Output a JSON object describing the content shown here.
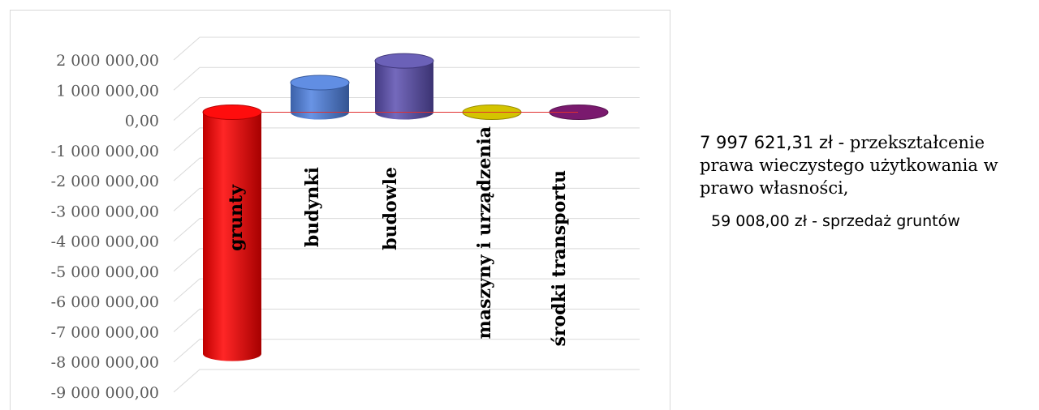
{
  "chart_data": {
    "type": "bar",
    "style": "3d-cylinder",
    "categories": [
      "grunty",
      "budynki",
      "budowle",
      "maszyny i urządzenia",
      "środki transportu"
    ],
    "values": [
      -7997621.31,
      980000,
      1700000,
      59008,
      15000
    ],
    "ylim": [
      -9000000,
      2000000
    ],
    "yticks": [
      2000000,
      1000000,
      0,
      -1000000,
      -2000000,
      -3000000,
      -4000000,
      -5000000,
      -6000000,
      -7000000,
      -8000000,
      -9000000
    ],
    "ytick_labels": [
      "2 000 000,00",
      "1 000 000,00",
      "0,00",
      "-1 000 000,00",
      "-2 000 000,00",
      "-3 000 000,00",
      "-4 000 000,00",
      "-5 000 000,00",
      "-6 000 000,00",
      "-7 000 000,00",
      "-8 000 000,00",
      "-9 000 000,00"
    ],
    "colors": [
      "#ff0000",
      "#4f81e0",
      "#5b4fb0",
      "#d4c400",
      "#7a1a6e"
    ],
    "grid": true,
    "legend": "none"
  },
  "annotations": {
    "note1_amount": "7 997 621,31 zł - ",
    "note1_text": "przekształcenie prawa wieczystego użytkowania w prawo własności,",
    "note2": "59 008,00 zł - sprzedaż gruntów"
  }
}
